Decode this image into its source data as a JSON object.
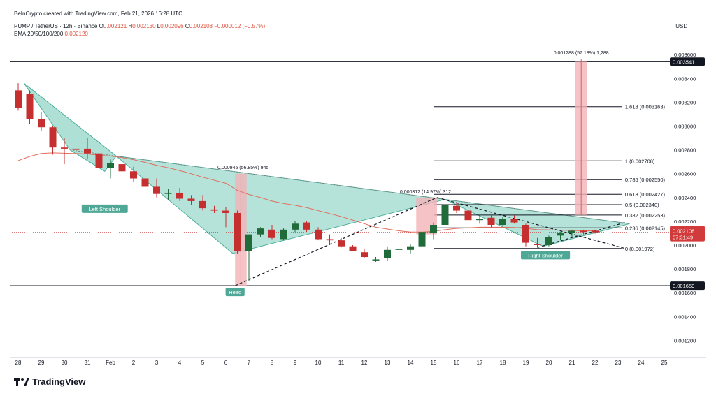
{
  "header": {
    "created": "BeInCrypto created with TradingView.com, Feb 21, 2026 16:28 UTC",
    "symbol": "PUMP / TetherUS · 12h · Binance",
    "o_label": "O",
    "o": "0.002121",
    "h_label": "H",
    "h": "0.002130",
    "l_label": "L",
    "l": "0.002096",
    "c_label": "C",
    "c": "0.002108",
    "change": "−0.000012 (−0.57%)",
    "ema_label": "EMA 20/50/100/200",
    "ema_value": "0.002120"
  },
  "currency": "USDT",
  "brand": "TradingView",
  "chart_data": {
    "type": "candlestick",
    "y_axis": {
      "min": 0.00112,
      "max": 0.00366,
      "ticks": [
        "0.001200",
        "0.001400",
        "0.001600",
        "0.001800",
        "0.002000",
        "0.002200",
        "0.002400",
        "0.002600",
        "0.002800",
        "0.003000",
        "0.003200",
        "0.003400",
        "0.003600"
      ]
    },
    "x_axis": {
      "tick_labels": [
        "28",
        "29",
        "30",
        "31",
        "Feb",
        "2",
        "3",
        "4",
        "5",
        "6",
        "7",
        "8",
        "9",
        "10",
        "11",
        "12",
        "13",
        "14",
        "15",
        "16",
        "17",
        "18",
        "19",
        "20",
        "21",
        "22",
        "23",
        "24",
        "25"
      ],
      "tick_index": [
        0,
        2,
        4,
        6,
        8,
        10,
        12,
        14,
        16,
        18,
        20,
        22,
        24,
        26,
        28,
        30,
        32,
        34,
        36,
        38,
        40,
        42,
        44,
        46,
        48,
        50,
        52,
        54,
        56
      ]
    },
    "candles": [
      [
        0.0033,
        0.00336,
        0.00313,
        0.00315
      ],
      [
        0.00327,
        0.0033,
        0.00302,
        0.00306
      ],
      [
        0.00306,
        0.00312,
        0.00296,
        0.00299
      ],
      [
        0.00299,
        0.003,
        0.00276,
        0.00282
      ],
      [
        0.00282,
        0.0029,
        0.00268,
        0.00281
      ],
      [
        0.00281,
        0.00283,
        0.00279,
        0.0028
      ],
      [
        0.00281,
        0.0029,
        0.00272,
        0.00277
      ],
      [
        0.00277,
        0.0028,
        0.00262,
        0.00265
      ],
      [
        0.00265,
        0.00272,
        0.00256,
        0.00269
      ],
      [
        0.00268,
        0.00274,
        0.00258,
        0.00262
      ],
      [
        0.00262,
        0.00266,
        0.00253,
        0.00256
      ],
      [
        0.00256,
        0.0026,
        0.00247,
        0.00249
      ],
      [
        0.00249,
        0.00256,
        0.0024,
        0.00243
      ],
      [
        0.00243,
        0.00247,
        0.00238,
        0.00244
      ],
      [
        0.00244,
        0.00248,
        0.00237,
        0.00239
      ],
      [
        0.00239,
        0.00242,
        0.00234,
        0.00237
      ],
      [
        0.00237,
        0.00242,
        0.00229,
        0.00231
      ],
      [
        0.0023,
        0.00233,
        0.00227,
        0.00229
      ],
      [
        0.00229,
        0.00232,
        0.00215,
        0.00227
      ],
      [
        0.00227,
        0.00229,
        0.00193,
        0.00195
      ],
      [
        0.00195,
        0.00209,
        0.0017,
        0.00209
      ],
      [
        0.00209,
        0.00215,
        0.00207,
        0.00214
      ],
      [
        0.00213,
        0.00217,
        0.00205,
        0.00206
      ],
      [
        0.00205,
        0.00214,
        0.00204,
        0.00213
      ],
      [
        0.00213,
        0.0022,
        0.00211,
        0.00218
      ],
      [
        0.00219,
        0.0022,
        0.00211,
        0.00213
      ],
      [
        0.00213,
        0.00215,
        0.00204,
        0.00205
      ],
      [
        0.00205,
        0.00209,
        0.002,
        0.00204
      ],
      [
        0.00204,
        0.00206,
        0.00198,
        0.00199
      ],
      [
        0.00199,
        0.002,
        0.00195,
        0.00195
      ],
      [
        0.00194,
        0.00197,
        0.00189,
        0.0019
      ],
      [
        0.00188,
        0.0019,
        0.00186,
        0.00188
      ],
      [
        0.00189,
        0.00199,
        0.00187,
        0.00196
      ],
      [
        0.00196,
        0.00201,
        0.00192,
        0.00197
      ],
      [
        0.00196,
        0.00201,
        0.00193,
        0.00199
      ],
      [
        0.00199,
        0.00214,
        0.00198,
        0.00211
      ],
      [
        0.0021,
        0.00219,
        0.00205,
        0.00217
      ],
      [
        0.00217,
        0.00243,
        0.00216,
        0.00234
      ],
      [
        0.00233,
        0.00236,
        0.00227,
        0.00229
      ],
      [
        0.00229,
        0.00231,
        0.00218,
        0.00221
      ],
      [
        0.00221,
        0.00225,
        0.00218,
        0.00222
      ],
      [
        0.00223,
        0.00226,
        0.00215,
        0.00217
      ],
      [
        0.00217,
        0.00224,
        0.00216,
        0.00222
      ],
      [
        0.00222,
        0.00225,
        0.00218,
        0.00219
      ],
      [
        0.00217,
        0.00218,
        0.00199,
        0.00202
      ],
      [
        0.00201,
        0.00206,
        0.00198,
        0.002
      ],
      [
        0.002,
        0.00208,
        0.00199,
        0.00207
      ],
      [
        0.00208,
        0.00211,
        0.00204,
        0.0021
      ],
      [
        0.0021,
        0.00213,
        0.00207,
        0.00212
      ],
      [
        0.00212,
        0.00213,
        0.00209,
        0.00211
      ],
      [
        0.002121,
        0.00213,
        0.002096,
        0.002108
      ]
    ],
    "ema": [
      0.00271,
      0.002745,
      0.00277,
      0.002775,
      0.002772,
      0.002769,
      0.002766,
      0.002755,
      0.002748,
      0.002735,
      0.002718,
      0.002695,
      0.00267,
      0.00265,
      0.002626,
      0.0026,
      0.00257,
      0.002545,
      0.00252,
      0.00246,
      0.002425,
      0.0024,
      0.00237,
      0.00235,
      0.002335,
      0.002315,
      0.00229,
      0.002265,
      0.00224,
      0.00221,
      0.00218,
      0.00215,
      0.002135,
      0.00212,
      0.00211,
      0.00211,
      0.002115,
      0.00213,
      0.00214,
      0.002145,
      0.00215,
      0.00215,
      0.00215,
      0.002148,
      0.00214,
      0.00213,
      0.002128,
      0.002125,
      0.002122,
      0.00212,
      0.00212
    ],
    "horizontal_levels": [
      {
        "price": 0.003541,
        "label": "0.003541"
      },
      {
        "price": 0.001659,
        "label": "0.001659"
      }
    ],
    "fib_levels": [
      {
        "price": 0.003163,
        "label": "1.618 (0.003163)"
      },
      {
        "price": 0.002708,
        "label": "1 (0.002708)"
      },
      {
        "price": 0.00255,
        "label": "0.786 (0.002550)"
      },
      {
        "price": 0.002427,
        "label": "0.618 (0.002427)"
      },
      {
        "price": 0.00234,
        "label": "0.5 (0.002340)"
      },
      {
        "price": 0.002253,
        "label": "0.382 (0.002253)"
      },
      {
        "price": 0.002145,
        "label": "0.236 (0.002145)"
      },
      {
        "price": 0.001972,
        "label": "0 (0.001972)"
      }
    ],
    "last_price": {
      "price": 0.002108,
      "label": "0.002108",
      "countdown": "07:31:49"
    },
    "annotations": {
      "left_shoulder": "Left Shoulder",
      "head": "Head",
      "right_shoulder": "Right Shoulder",
      "measure_1": "0.000945 (56.85%) 945",
      "measure_2": "0.000312 (14.97%) 312",
      "measure_3": "0.001288 (57.18%) 1,288"
    },
    "colors": {
      "up": "#1f6b3a",
      "down": "#c62f2f",
      "ema": "#e26d5c",
      "pattern_fill": "#6cc6b3",
      "pattern_edge": "#4fae9a",
      "measure_fill": "#f2b3b8",
      "label_bg": "#4fa896",
      "price_tag": "#d23b3b",
      "level_tag": "#131722"
    }
  }
}
